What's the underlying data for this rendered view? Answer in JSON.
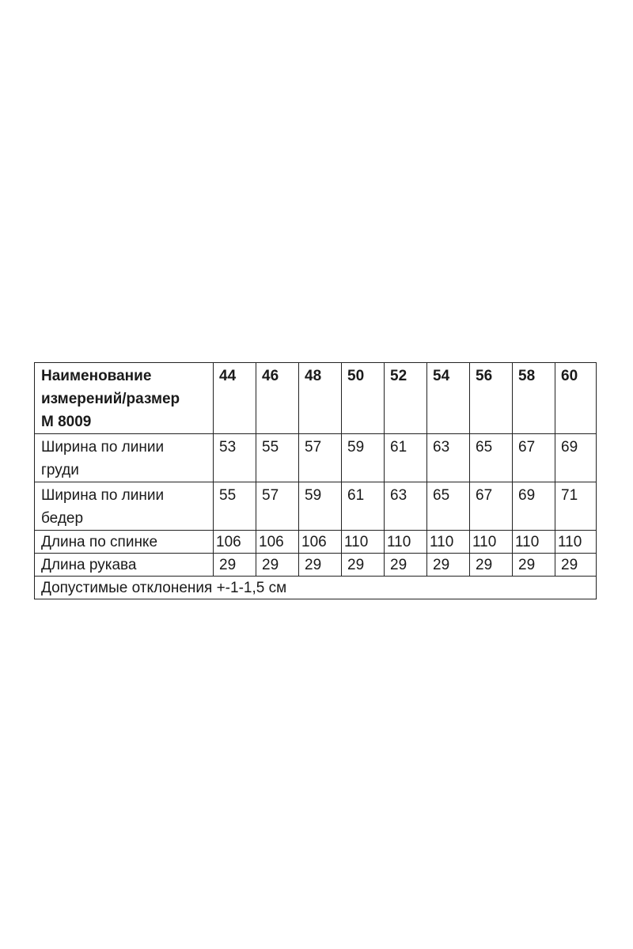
{
  "table": {
    "header_label": [
      "Наименование",
      "измерений/размер",
      "М 8009"
    ],
    "sizes": [
      "44",
      "46",
      "48",
      "50",
      "52",
      "54",
      "56",
      "58",
      "60"
    ],
    "rows": [
      {
        "label": [
          "Ширина по линии",
          "груди"
        ],
        "values": [
          "53",
          "55",
          "57",
          "59",
          "61",
          "63",
          "65",
          "67",
          "69"
        ]
      },
      {
        "label": [
          "Ширина по линии",
          "бедер"
        ],
        "values": [
          "55",
          "57",
          "59",
          "61",
          "63",
          "65",
          "67",
          "69",
          "71"
        ]
      },
      {
        "label": [
          "Длина по спинке"
        ],
        "values": [
          "106",
          "106",
          "106",
          "110",
          "110",
          "110",
          "110",
          "110",
          "110"
        ]
      },
      {
        "label": [
          "Длина рукава"
        ],
        "values": [
          "29",
          "29",
          "29",
          "29",
          "29",
          "29",
          "29",
          "29",
          "29"
        ]
      }
    ],
    "footer_note": "Допустимые отклонения +-1-1,5 см"
  }
}
